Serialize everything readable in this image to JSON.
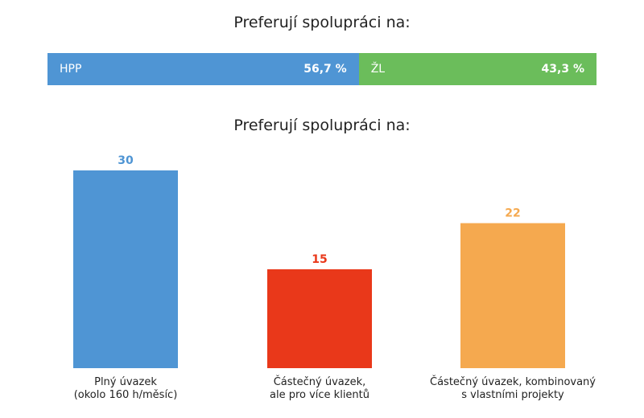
{
  "chart_data": [
    {
      "type": "bar",
      "orientation": "horizontal-stacked-100",
      "title": "Preferují spolupráci na:",
      "series": [
        {
          "name": "HPP",
          "value": 56.7,
          "label": "56,7 %",
          "color": "#4f95d4"
        },
        {
          "name": "ŽL",
          "value": 43.3,
          "label": "43,3 %",
          "color": "#6bbd5b"
        }
      ]
    },
    {
      "type": "bar",
      "title": "Preferují spolupráci na:",
      "categories": [
        "Plný úvazek\n(okolo 160 h/měsíc)",
        "Částečný úvazek,\nale pro více klientů",
        "Částečný úvazek, kombinovaný\ns vlastními projekty"
      ],
      "values": [
        30,
        15,
        22
      ],
      "colors": [
        "#4f95d4",
        "#e9381a",
        "#f5a94f"
      ],
      "ylim": [
        0,
        30
      ],
      "grid": false,
      "legend": "none"
    }
  ]
}
